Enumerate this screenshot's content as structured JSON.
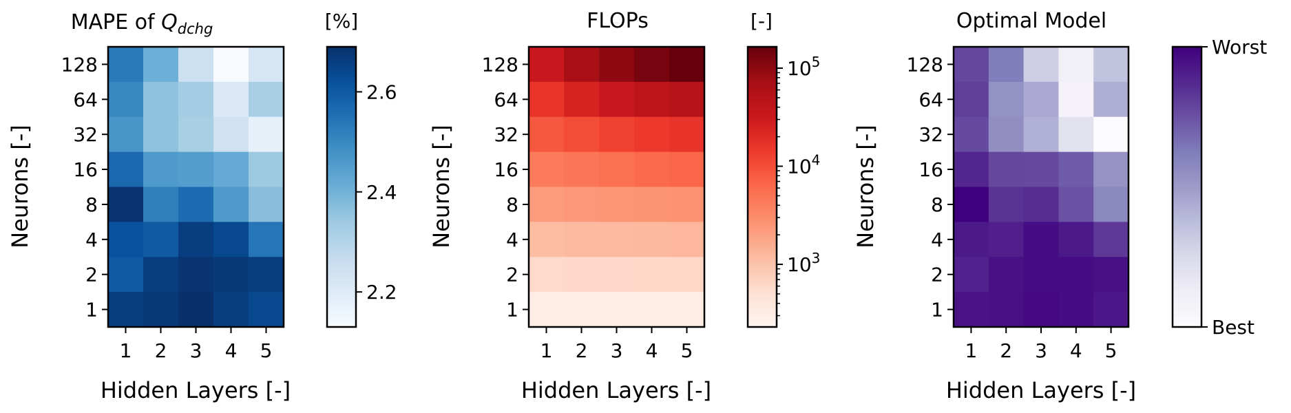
{
  "chart_data": [
    {
      "type": "heatmap",
      "title": "MAPE of Q_dchg",
      "title_parts": {
        "prefix": "MAPE of ",
        "symbol": "Q",
        "subscript": "dchg"
      },
      "xlabel": "Hidden Layers [-]",
      "ylabel": "Neurons [-]",
      "x_categories": [
        "1",
        "2",
        "3",
        "4",
        "5"
      ],
      "y_categories": [
        "128",
        "64",
        "32",
        "16",
        "8",
        "4",
        "2",
        "1"
      ],
      "values": [
        [
          2.53,
          2.41,
          2.25,
          2.12,
          2.22
        ],
        [
          2.5,
          2.36,
          2.33,
          2.21,
          2.32
        ],
        [
          2.47,
          2.36,
          2.32,
          2.24,
          2.18
        ],
        [
          2.57,
          2.46,
          2.45,
          2.42,
          2.34
        ],
        [
          2.68,
          2.52,
          2.56,
          2.46,
          2.37
        ],
        [
          2.62,
          2.6,
          2.66,
          2.64,
          2.54
        ],
        [
          2.6,
          2.66,
          2.68,
          2.67,
          2.66
        ],
        [
          2.66,
          2.67,
          2.69,
          2.66,
          2.64
        ]
      ],
      "colormap": "Blues",
      "vmin": 2.13,
      "vmax": 2.69,
      "colorbar": {
        "label": "[%]",
        "scale": "linear",
        "ticks": [
          "2.2",
          "2.4",
          "2.6"
        ],
        "tick_values": [
          2.2,
          2.4,
          2.6
        ]
      }
    },
    {
      "type": "heatmap",
      "title": "FLOPs",
      "xlabel": "Hidden Layers [-]",
      "ylabel": "Neurons [-]",
      "x_categories": [
        "1",
        "2",
        "3",
        "4",
        "5"
      ],
      "y_categories": [
        "128",
        "64",
        "32",
        "16",
        "8",
        "4",
        "2",
        "1"
      ],
      "values": [
        [
          33000,
          66000,
          99000,
          132000,
          165000
        ],
        [
          16500,
          25000,
          33500,
          42000,
          50500
        ],
        [
          8400,
          10500,
          12600,
          14700,
          16800
        ],
        [
          4300,
          4800,
          5400,
          6000,
          6500
        ],
        [
          2200,
          2400,
          2500,
          2600,
          2700
        ],
        [
          1150,
          1200,
          1220,
          1250,
          1280
        ],
        [
          600,
          610,
          620,
          630,
          640
        ],
        [
          310,
          312,
          314,
          316,
          318
        ]
      ],
      "colormap": "Reds",
      "vmin": 230,
      "vmax": 165000,
      "colorbar": {
        "label": "[-]",
        "scale": "log",
        "ticks": [
          "10^3",
          "10^4",
          "10^5"
        ],
        "tick_values": [
          1000,
          10000,
          100000
        ]
      }
    },
    {
      "type": "heatmap",
      "title": "Optimal Model",
      "xlabel": "Hidden Layers [-]",
      "ylabel": "Neurons [-]",
      "x_categories": [
        "1",
        "2",
        "3",
        "4",
        "5"
      ],
      "y_categories": [
        "128",
        "64",
        "32",
        "16",
        "8",
        "4",
        "2",
        "1"
      ],
      "values": [
        [
          0.78,
          0.62,
          0.3,
          0.1,
          0.35
        ],
        [
          0.8,
          0.54,
          0.45,
          0.07,
          0.43
        ],
        [
          0.77,
          0.55,
          0.42,
          0.2,
          0.0
        ],
        [
          0.88,
          0.78,
          0.77,
          0.72,
          0.53
        ],
        [
          1.0,
          0.84,
          0.86,
          0.75,
          0.58
        ],
        [
          0.92,
          0.9,
          0.96,
          0.92,
          0.82
        ],
        [
          0.89,
          0.95,
          0.96,
          0.96,
          0.95
        ],
        [
          0.94,
          0.95,
          0.97,
          0.96,
          0.93
        ]
      ],
      "colormap": "Purples",
      "vmin": 0,
      "vmax": 1,
      "colorbar": {
        "label": "",
        "scale": "linear",
        "ticks": [
          "Best",
          "Worst"
        ],
        "tick_values": [
          0,
          1
        ]
      }
    }
  ],
  "colors": {
    "blues_ramp": [
      "#f7fbff",
      "#deebf7",
      "#c6dbef",
      "#9ecae1",
      "#6baed6",
      "#4292c6",
      "#2171b5",
      "#08519c",
      "#08306b"
    ],
    "reds_ramp": [
      "#fff5f0",
      "#fee0d2",
      "#fcbba1",
      "#fc9272",
      "#fb6a4a",
      "#ef3b2c",
      "#cb181d",
      "#a50f15",
      "#67000d"
    ],
    "purples_ramp": [
      "#fcfbfd",
      "#efedf5",
      "#dadaeb",
      "#bcbddc",
      "#9e9ac8",
      "#807dba",
      "#6a51a3",
      "#54278f",
      "#3f007d"
    ]
  }
}
